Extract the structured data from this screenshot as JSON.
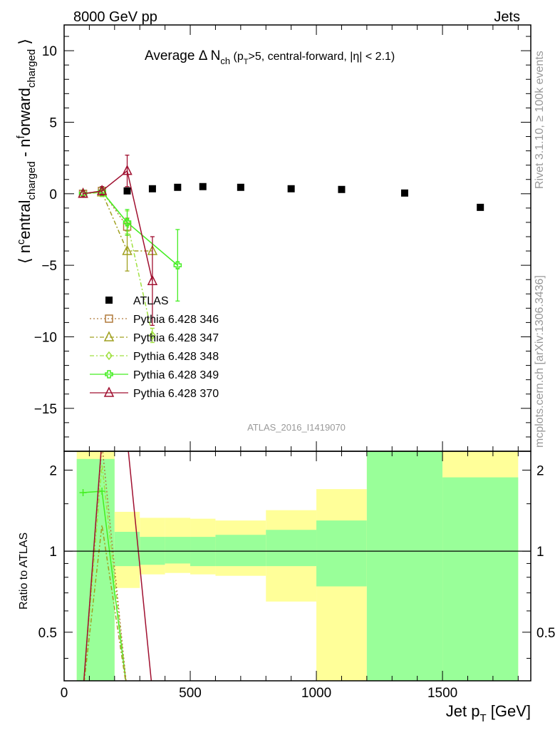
{
  "header": {
    "energy_label": "8000 GeV pp",
    "category_label": "Jets",
    "analysis_id": "ATLAS_2016_I1419070",
    "rivet_label": "Rivet 3.1.10, ≥ 100k events",
    "source_label": "mcplots.cern.ch [arXiv:1306.3436]"
  },
  "chart_data": [
    {
      "type": "scatter",
      "panel": "main",
      "title": "Average Δ N_ch (p_T>5, central-forward, |η| < 2.1)",
      "title_parts": {
        "main": "Average Δ N",
        "sub1": "ch",
        "mid1": " (p",
        "sub2": "T",
        "rest": ">5, central-forward, |η| < 2.1)"
      },
      "xlabel": "Jet p_T [GeV]",
      "ylabel": "⟨ n^central_charged - n^forward_charged ⟩",
      "ylabel_parts": {
        "p1": "⟨ n",
        "sup1": "c",
        "p2": "entral",
        "sub1": "charged",
        "p3": " - n",
        "sup2": "f",
        "p4": "orward",
        "sub2": "charged",
        "p5": " ⟩"
      },
      "xlabel_parts": {
        "p1": "Jet p",
        "sub": "T",
        "p2": " [GeV]"
      },
      "xlim": [
        0,
        1850
      ],
      "ylim": [
        -18,
        11.8
      ],
      "yticks": [
        10,
        5,
        0,
        -5,
        -10,
        -15
      ],
      "xticks": [
        0,
        500,
        1000,
        1500
      ],
      "legend_position": "center-left",
      "series": [
        {
          "name": "ATLAS",
          "color": "#000000",
          "marker": "square-filled",
          "x": [
            250,
            350,
            450,
            550,
            700,
            900,
            1100,
            1350,
            1650
          ],
          "y": [
            0.2,
            0.35,
            0.45,
            0.5,
            0.45,
            0.35,
            0.3,
            0.05,
            -0.95
          ]
        },
        {
          "name": "Pythia 6.428 346",
          "color": "#b07a3c",
          "marker": "square-open",
          "line": "dotted",
          "x": [
            75,
            150,
            250
          ],
          "y": [
            0.0,
            0.2,
            -2.3
          ],
          "err": [
            0.2,
            0.2,
            0.6
          ]
        },
        {
          "name": "Pythia 6.428 347",
          "color": "#a0a020",
          "marker": "triangle-open",
          "line": "dashdot",
          "x": [
            75,
            150,
            250,
            350
          ],
          "y": [
            0.0,
            0.1,
            -4.0,
            -4.0
          ],
          "err": [
            0.2,
            0.3,
            1.4,
            0.0
          ]
        },
        {
          "name": "Pythia 6.428 348",
          "color": "#a0e040",
          "marker": "diamond-open",
          "line": "dashdot",
          "x": [
            75,
            150,
            250,
            350
          ],
          "y": [
            0.0,
            0.1,
            -2.0,
            -9.9
          ],
          "err": [
            0.2,
            0.3,
            0.8,
            0.5
          ]
        },
        {
          "name": "Pythia 6.428 349",
          "color": "#44ee22",
          "marker": "cross-open",
          "line": "solid",
          "x": [
            75,
            150,
            250,
            450
          ],
          "y": [
            0.0,
            0.15,
            -2.0,
            -5.0
          ],
          "err": [
            0.2,
            0.3,
            0.9,
            2.5
          ]
        },
        {
          "name": "Pythia 6.428 370",
          "color": "#a01030",
          "marker": "triangle-open",
          "line": "solid",
          "x": [
            75,
            150,
            250,
            350
          ],
          "y": [
            0.0,
            0.2,
            1.6,
            -6.1
          ],
          "err": [
            0.2,
            0.3,
            1.1,
            3.1
          ]
        }
      ]
    },
    {
      "type": "scatter",
      "panel": "ratio",
      "ylabel": "Ratio to ATLAS",
      "xlim": [
        0,
        1850
      ],
      "ylim": [
        0.33,
        2.35
      ],
      "yscale": "log",
      "yticks": [
        0.5,
        1,
        2
      ],
      "bins": [
        {
          "lo": 50,
          "hi": 200,
          "y_lo": 0.33,
          "y_hi": 2.35,
          "g_lo": 0.33,
          "g_hi": 2.2
        },
        {
          "lo": 200,
          "hi": 300,
          "y_lo": 0.73,
          "y_hi": 1.4,
          "g_lo": 0.88,
          "g_hi": 1.18
        },
        {
          "lo": 300,
          "hi": 400,
          "y_lo": 0.82,
          "y_hi": 1.33,
          "g_lo": 0.89,
          "g_hi": 1.13
        },
        {
          "lo": 400,
          "hi": 500,
          "y_lo": 0.83,
          "y_hi": 1.33,
          "g_lo": 0.9,
          "g_hi": 1.13
        },
        {
          "lo": 500,
          "hi": 600,
          "y_lo": 0.82,
          "y_hi": 1.32,
          "g_lo": 0.88,
          "g_hi": 1.13
        },
        {
          "lo": 600,
          "hi": 800,
          "y_lo": 0.81,
          "y_hi": 1.3,
          "g_lo": 0.88,
          "g_hi": 1.15
        },
        {
          "lo": 800,
          "hi": 1000,
          "y_lo": 0.65,
          "y_hi": 1.42,
          "g_lo": 0.88,
          "g_hi": 1.2
        },
        {
          "lo": 1000,
          "hi": 1200,
          "y_lo": 0.33,
          "y_hi": 1.7,
          "g_lo": 0.74,
          "g_hi": 1.3
        },
        {
          "lo": 1200,
          "hi": 1500,
          "y_lo": 0.33,
          "y_hi": 2.35,
          "g_lo": 0.33,
          "g_hi": 2.35
        },
        {
          "lo": 1500,
          "hi": 1800,
          "y_lo": 0.33,
          "y_hi": 2.35,
          "g_lo": 0.33,
          "g_hi": 1.88
        }
      ],
      "series": [
        {
          "name": "Pythia 6.428 349",
          "color": "#44ee22",
          "x": [
            75,
            150,
            250
          ],
          "y": [
            1.65,
            1.67,
            0.3
          ]
        },
        {
          "name": "Pythia 6.428 348",
          "color": "#a0e040",
          "x": [
            75,
            150,
            250
          ],
          "y": [
            0.3,
            2.1,
            0.3
          ]
        },
        {
          "name": "Pythia 6.428 347",
          "color": "#a0a020",
          "x": [
            75,
            150,
            250
          ],
          "y": [
            0.3,
            1.25,
            0.3
          ]
        },
        {
          "name": "Pythia 6.428 346",
          "color": "#b07a3c",
          "x": [
            75,
            150,
            250
          ],
          "y": [
            0.3,
            2.5,
            0.3
          ]
        },
        {
          "name": "Pythia 6.428 370",
          "color": "#a01030",
          "x": [
            75,
            150,
            250,
            350
          ],
          "y": [
            0.3,
            2.6,
            2.6,
            0.3
          ]
        }
      ]
    }
  ]
}
